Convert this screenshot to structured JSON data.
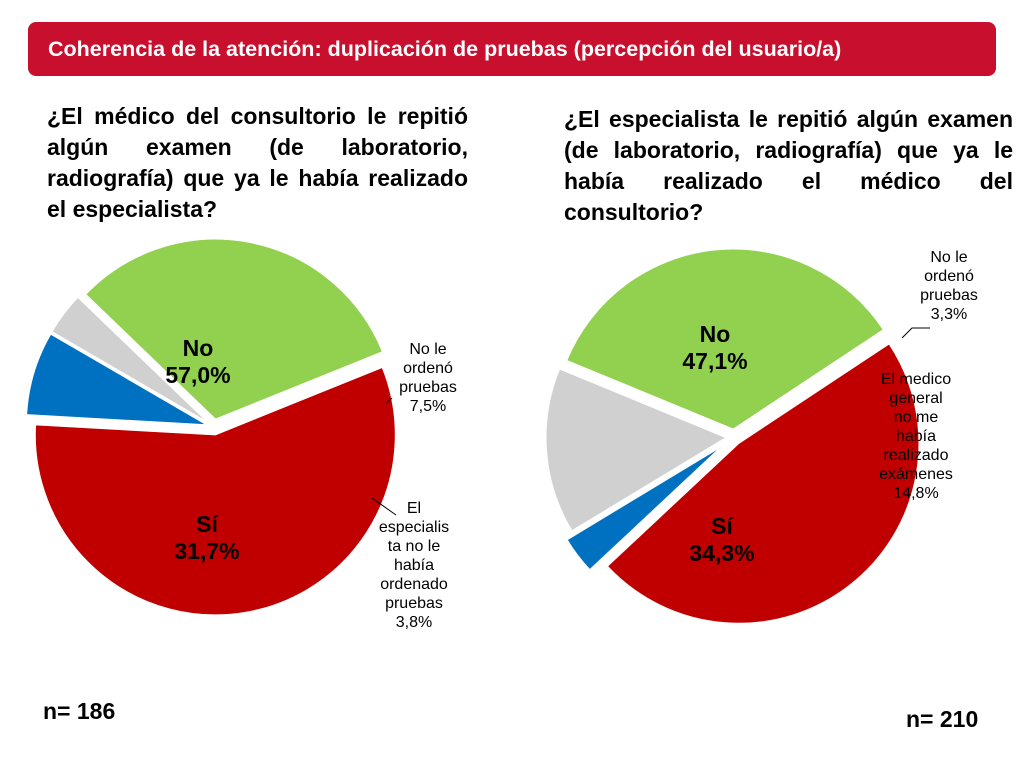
{
  "title": "Coherencia de la atención: duplicación de pruebas (percepción del usuario/a)",
  "colors": {
    "banner": "#c8102e",
    "no": "#c00000",
    "si": "#92d050",
    "blue": "#0070c0",
    "gray": "#d0d0d0"
  },
  "chart_data": [
    {
      "type": "pie",
      "title": "¿El médico del consultorio le repitió algún examen (de laboratorio, radiografía) que ya le había realizado el especialista?",
      "n_label": "n= 186",
      "slices": [
        {
          "key": "no",
          "label": "No",
          "value": 57.0,
          "value_label": "57,0%",
          "label_lines": [
            "No",
            "57,0%"
          ],
          "color": "#c00000"
        },
        {
          "key": "no-le-ordeno",
          "label": "No le ordenó pruebas",
          "value": 7.5,
          "value_label": "7,5%",
          "label_lines": [
            "No le",
            "ordenó",
            "pruebas",
            "7,5%"
          ],
          "color": "#0070c0"
        },
        {
          "key": "especialista-no-ordeno",
          "label": "El especialista no le había ordenado pruebas",
          "value": 3.8,
          "value_label": "3,8%",
          "label_lines": [
            "El",
            "especialis",
            "ta no le",
            "había",
            "ordenado",
            "pruebas",
            "3,8%"
          ],
          "color": "#d0d0d0"
        },
        {
          "key": "si",
          "label": "Sí",
          "value": 31.7,
          "value_label": "31,7%",
          "label_lines": [
            "Sí",
            "31,7%"
          ],
          "color": "#92d050"
        }
      ]
    },
    {
      "type": "pie",
      "title": "¿El especialista le repitió algún examen (de laboratorio, radiografía) que ya le había realizado el médico del consultorio?",
      "n_label": "n= 210",
      "slices": [
        {
          "key": "no",
          "label": "No",
          "value": 47.1,
          "value_label": "47,1%",
          "label_lines": [
            "No",
            "47,1%"
          ],
          "color": "#c00000"
        },
        {
          "key": "no-le-ordeno",
          "label": "No le ordenó pruebas",
          "value": 3.3,
          "value_label": "3,3%",
          "label_lines": [
            "No le",
            "ordenó",
            "pruebas",
            "3,3%"
          ],
          "color": "#0070c0"
        },
        {
          "key": "medico-no-realizo",
          "label": "El medico general no me había realizado exámenes",
          "value": 14.8,
          "value_label": "14,8%",
          "label_lines": [
            "El medico",
            "general",
            "no me",
            "había",
            "realizado",
            "exámenes",
            "14,8%"
          ],
          "color": "#d0d0d0"
        },
        {
          "key": "si",
          "label": "Sí",
          "value": 34.3,
          "value_label": "34,3%",
          "label_lines": [
            "Sí",
            "34,3%"
          ],
          "color": "#92d050"
        }
      ]
    }
  ]
}
